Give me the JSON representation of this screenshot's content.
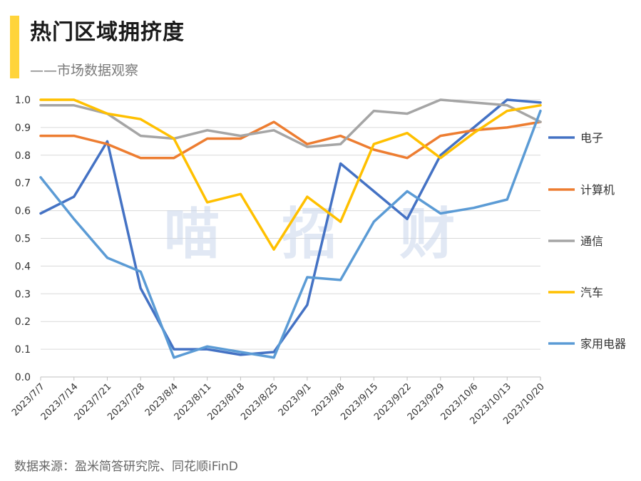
{
  "header": {
    "title": "热门区域拥挤度",
    "subtitle": "——市场数据观察"
  },
  "footer": {
    "source": "数据来源：盈米简答研究院、同花顺iFinD"
  },
  "watermark": "喵 招 财",
  "chart_data": {
    "type": "line",
    "title": "热门区域拥挤度",
    "xlabel": "",
    "ylabel": "",
    "ylim": [
      0,
      1.0
    ],
    "yticks": [
      "0.0",
      "0.1",
      "0.2",
      "0.3",
      "0.4",
      "0.5",
      "0.6",
      "0.7",
      "0.8",
      "0.9",
      "1.0"
    ],
    "grid": true,
    "legend_position": "right",
    "x": [
      "2023/7/7",
      "2023/7/14",
      "2023/7/21",
      "2023/7/28",
      "2023/8/4",
      "2023/8/11",
      "2023/8/18",
      "2023/8/25",
      "2023/9/1",
      "2023/9/8",
      "2023/9/15",
      "2023/9/22",
      "2023/9/29",
      "2023/10/6",
      "2023/10/13",
      "2023/10/20"
    ],
    "series": [
      {
        "name": "电子",
        "color": "#4472c4",
        "values": [
          0.59,
          0.65,
          0.85,
          0.32,
          0.1,
          0.1,
          0.08,
          0.09,
          0.26,
          0.77,
          0.67,
          0.57,
          0.8,
          0.9,
          1.0,
          0.99
        ]
      },
      {
        "name": "计算机",
        "color": "#ed7d31",
        "values": [
          0.87,
          0.87,
          0.84,
          0.79,
          0.79,
          0.86,
          0.86,
          0.92,
          0.84,
          0.87,
          0.82,
          0.79,
          0.87,
          0.89,
          0.9,
          0.92
        ]
      },
      {
        "name": "通信",
        "color": "#a5a5a5",
        "values": [
          0.98,
          0.98,
          0.95,
          0.87,
          0.86,
          0.89,
          0.87,
          0.89,
          0.83,
          0.84,
          0.96,
          0.95,
          1.0,
          0.99,
          0.98,
          0.92
        ]
      },
      {
        "name": "汽车",
        "color": "#ffc000",
        "values": [
          1.0,
          1.0,
          0.95,
          0.93,
          0.86,
          0.63,
          0.66,
          0.46,
          0.65,
          0.56,
          0.84,
          0.88,
          0.79,
          0.88,
          0.96,
          0.98
        ]
      },
      {
        "name": "家用电器",
        "color": "#5b9bd5",
        "values": [
          0.72,
          0.57,
          0.43,
          0.38,
          0.07,
          0.11,
          0.09,
          0.07,
          0.36,
          0.35,
          0.56,
          0.67,
          0.59,
          0.61,
          0.64,
          0.96
        ]
      }
    ]
  }
}
